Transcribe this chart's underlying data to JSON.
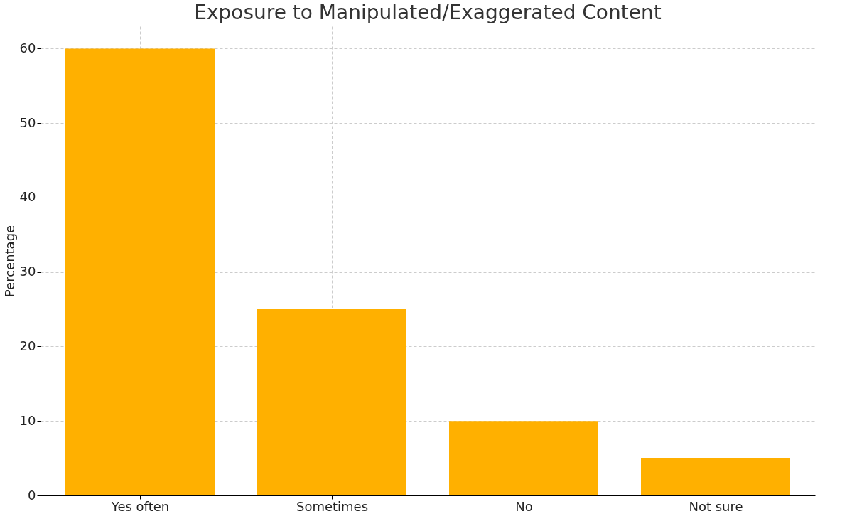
{
  "chart_data": {
    "type": "bar",
    "title": "Exposure to Manipulated/Exaggerated Content",
    "ylabel": "Percentage",
    "categories": [
      "Yes often",
      "Sometimes",
      "No",
      "Not sure"
    ],
    "values": [
      60,
      25,
      10,
      5
    ],
    "color": "#ffb000",
    "ylim": [
      0,
      63
    ],
    "yticks": [
      0,
      10,
      20,
      30,
      40,
      50,
      60
    ],
    "grid": true
  }
}
